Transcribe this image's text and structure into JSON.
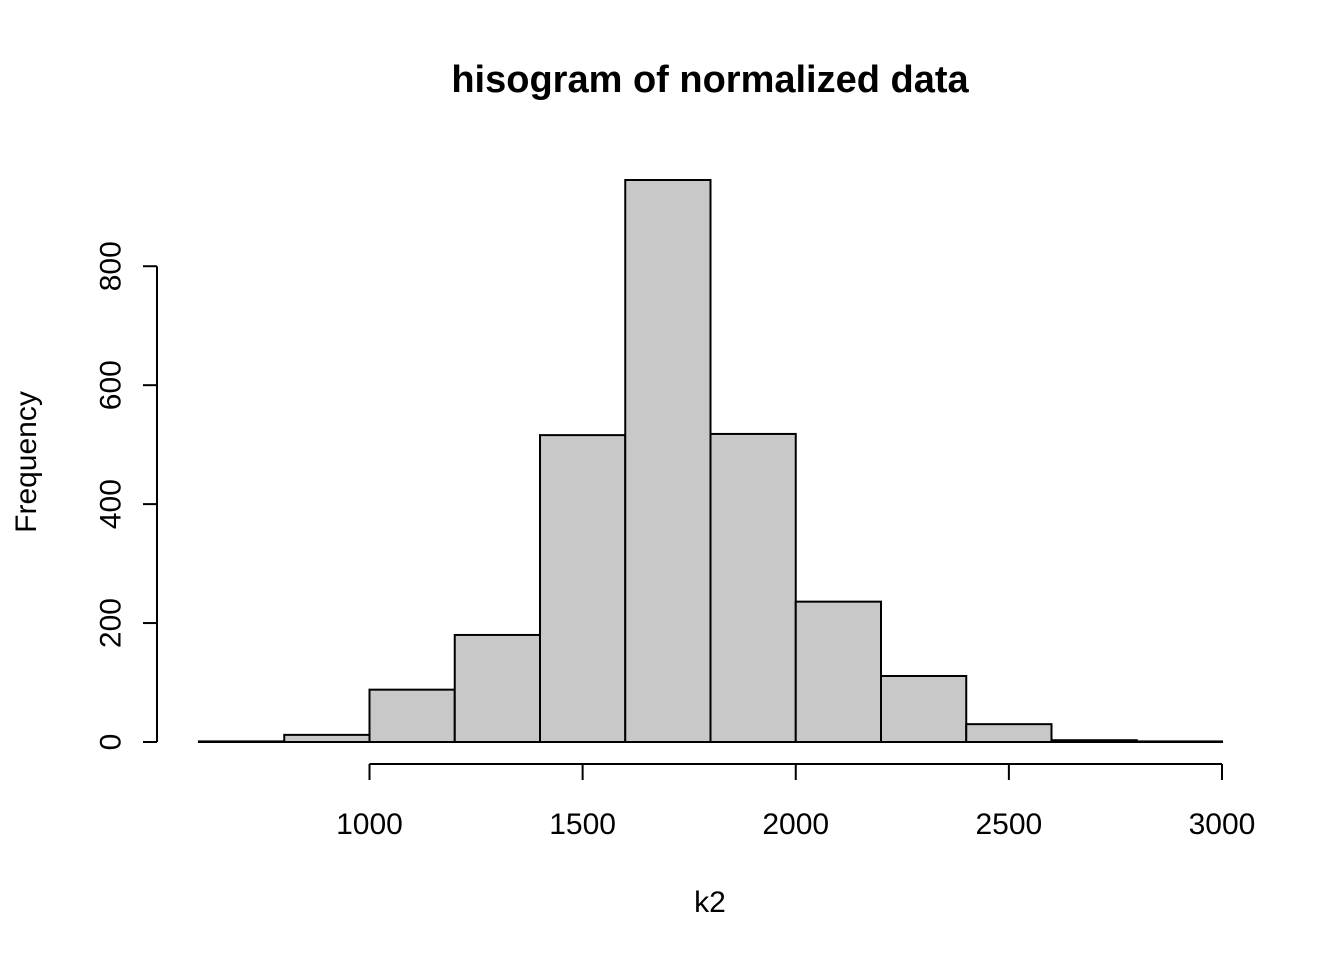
{
  "chart_data": {
    "type": "bar",
    "title": "hisogram of normalized data",
    "xlabel": "k2",
    "ylabel": "Frequency",
    "bin_edges": [
      600,
      800,
      1000,
      1200,
      1400,
      1600,
      1800,
      2000,
      2200,
      2400,
      2600,
      2800,
      3000
    ],
    "values": [
      1,
      12,
      88,
      180,
      516,
      945,
      518,
      236,
      111,
      30,
      3,
      1
    ],
    "xlim": [
      600,
      3000
    ],
    "ylim": [
      0,
      945
    ],
    "x_ticks": [
      1000,
      1500,
      2000,
      2500,
      3000
    ],
    "y_ticks": [
      0,
      200,
      400,
      600,
      800
    ],
    "grid": false,
    "colors": {
      "bar_fill": "#c8c8c8",
      "bar_stroke": "#000000"
    }
  }
}
